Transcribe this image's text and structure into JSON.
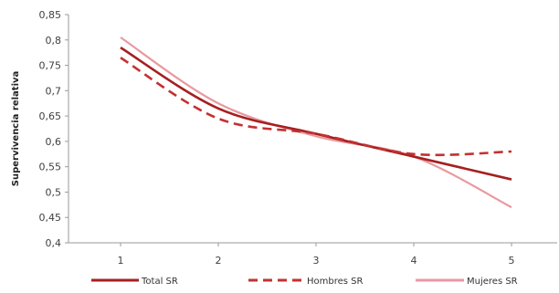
{
  "chart_data": {
    "type": "line",
    "ylabel": "Supervivencia relativa",
    "xlabel": "",
    "x": [
      1,
      2,
      3,
      4,
      5
    ],
    "x_tick_labels": [
      "1",
      "2",
      "3",
      "4",
      "5"
    ],
    "ylim": [
      0.4,
      0.85
    ],
    "y_ticks": [
      0.4,
      0.45,
      0.5,
      0.55,
      0.6,
      0.65,
      0.7,
      0.75,
      0.8,
      0.85
    ],
    "y_tick_labels": [
      "0,4",
      "0,45",
      "0,5",
      "0,55",
      "0,6",
      "0,65",
      "0,7",
      "0,75",
      "0,8",
      "0,85"
    ],
    "grid": false,
    "legend_position": "bottom",
    "series": [
      {
        "name": "Total SR",
        "values": [
          0.785,
          0.665,
          0.615,
          0.57,
          0.525
        ],
        "color": "#a52020",
        "style": "solid"
      },
      {
        "name": "Hombres SR",
        "values": [
          0.765,
          0.645,
          0.615,
          0.575,
          0.58
        ],
        "color": "#c43030",
        "style": "dashed"
      },
      {
        "name": "Mujeres SR",
        "values": [
          0.805,
          0.675,
          0.61,
          0.57,
          0.47
        ],
        "color": "#e89aa0",
        "style": "solid"
      }
    ]
  }
}
